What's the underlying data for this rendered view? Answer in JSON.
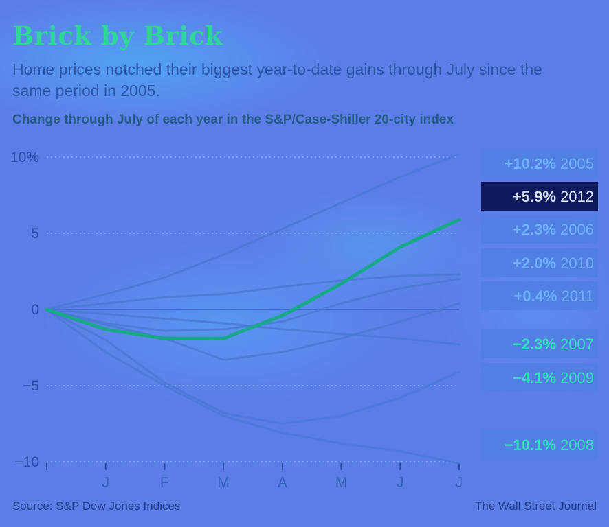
{
  "header": {
    "title": "Brick by Brick",
    "subtitle": "Home prices notched their biggest year-to-date gains through July since the same period in 2005.",
    "chart_heading": "Change through July of each year in the S&P/Case-Shiller 20-city index"
  },
  "footer": {
    "source": "Source: S&P Dow Jones Indices",
    "credit": "The Wall Street Journal"
  },
  "chart_data": {
    "type": "line",
    "x": [
      "",
      "J",
      "F",
      "M",
      "A",
      "M",
      "J",
      "J"
    ],
    "ylim": [
      -10,
      10
    ],
    "yticks": [
      10,
      5,
      0,
      -5,
      -10
    ],
    "ytick_labels": [
      "10%",
      "5",
      "0",
      "−5",
      "−10"
    ],
    "grid": true,
    "highlight_series": "2012",
    "colors": {
      "highlight": "#1aa88a",
      "other": "#4b79d6",
      "label_positive": "#6fb0ff",
      "label_negative": "#35e0c0",
      "label_highlight": "#d8e4ff"
    },
    "series": [
      {
        "name": "2005",
        "label": "+10.2%",
        "values": [
          0,
          1.0,
          2.1,
          3.6,
          5.3,
          7.0,
          8.7,
          10.2
        ]
      },
      {
        "name": "2012",
        "label": "+5.9%",
        "values": [
          0,
          -1.3,
          -1.9,
          -1.9,
          -0.4,
          1.7,
          4.1,
          5.9
        ]
      },
      {
        "name": "2006",
        "label": "+2.3%",
        "values": [
          0,
          0.4,
          0.8,
          1.0,
          1.5,
          1.9,
          2.2,
          2.3
        ]
      },
      {
        "name": "2010",
        "label": "+2.0%",
        "values": [
          0,
          -0.9,
          -1.4,
          -1.3,
          -0.8,
          0.4,
          1.4,
          2.0
        ]
      },
      {
        "name": "2011",
        "label": "+0.4%",
        "values": [
          0,
          -1.0,
          -1.9,
          -3.3,
          -2.8,
          -1.9,
          -0.8,
          0.4
        ]
      },
      {
        "name": "2007",
        "label": "−2.3%",
        "values": [
          0,
          -0.3,
          -0.6,
          -0.9,
          -1.3,
          -1.6,
          -1.9,
          -2.3
        ]
      },
      {
        "name": "2009",
        "label": "−4.1%",
        "values": [
          0,
          -2.0,
          -4.8,
          -6.8,
          -7.5,
          -7.0,
          -5.8,
          -4.1
        ]
      },
      {
        "name": "2008",
        "label": "−10.1%",
        "values": [
          0,
          -2.8,
          -5.0,
          -7.0,
          -8.1,
          -8.8,
          -9.3,
          -10.1
        ]
      }
    ]
  }
}
